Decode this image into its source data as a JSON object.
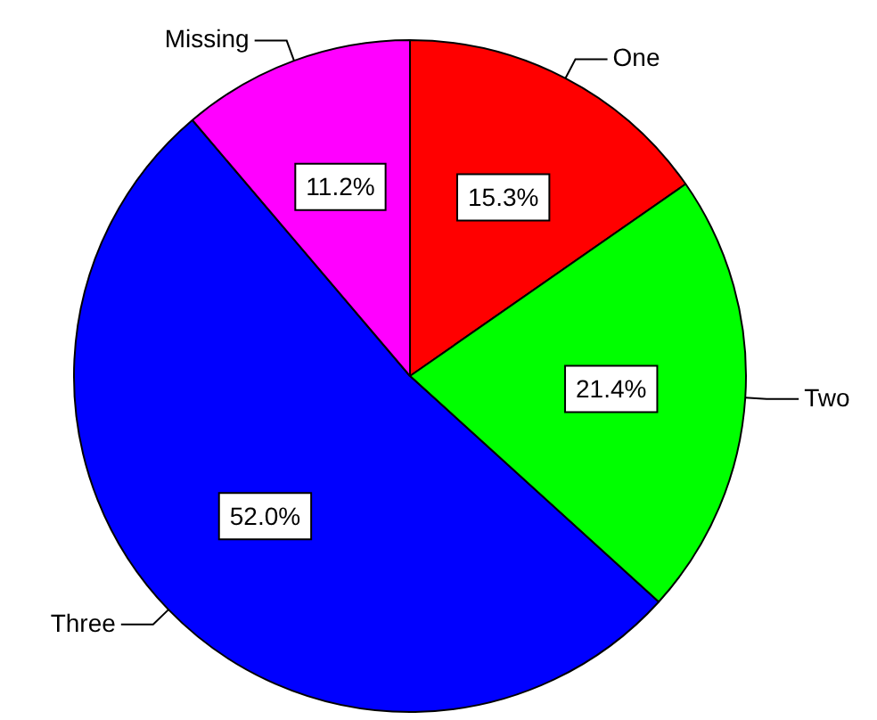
{
  "chart_data": {
    "type": "pie",
    "categories": [
      "One",
      "Two",
      "Three",
      "Missing"
    ],
    "values": [
      15.3,
      21.4,
      52.0,
      11.2
    ],
    "value_labels": [
      "15.3%",
      "21.4%",
      "52.0%",
      "11.2%"
    ],
    "colors": [
      "#ff0000",
      "#00ff00",
      "#0000ff",
      "#ff00ff"
    ],
    "legend": false
  }
}
